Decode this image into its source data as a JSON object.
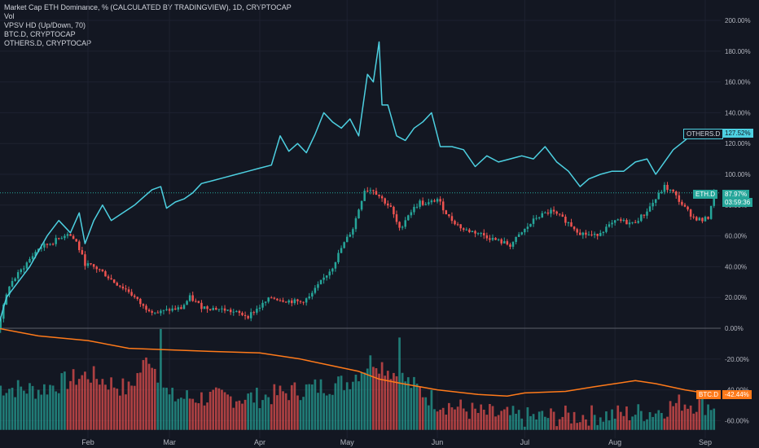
{
  "legend": {
    "line1": "Market Cap ETH Dominance, % (CALCULATED BY TRADINGVIEW), 1D, CRYPTOCAP",
    "line2": "Vol",
    "line3": "VPSV HD (Up/Down, 70)",
    "line4": "BTC.D, CRYPTOCAP",
    "line5": "OTHERS.D, CRYPTOCAP"
  },
  "badges": {
    "others_label": "OTHERS.D",
    "others_value": "127.52%",
    "eth_label": "ETH.D",
    "eth_value": "87.97%",
    "eth_countdown": "03:59:36",
    "btc_label": "BTC.D",
    "btc_value": "-42.44%"
  },
  "colors": {
    "background": "#131722",
    "up": "#26a69a",
    "down": "#ef5350",
    "others_line": "#4dd0e1",
    "btc_line": "#ff7a1a",
    "grid": "#1e2230",
    "zero_line": "#5d606b"
  },
  "chart_data": {
    "type": "line",
    "ylim": [
      -70,
      210
    ],
    "y_tick_labels": [
      "200.00%",
      "180.00%",
      "160.00%",
      "140.00%",
      "120.00%",
      "100.00%",
      "80.00%",
      "60.00%",
      "40.00%",
      "20.00%",
      "0.00%",
      "-20.00%",
      "-40.00%",
      "-60.00%"
    ],
    "y_tick_values": [
      200,
      180,
      160,
      140,
      120,
      100,
      80,
      60,
      40,
      20,
      0,
      -20,
      -40,
      -60
    ],
    "x_tick_labels": [
      "Feb",
      "Mar",
      "Apr",
      "May",
      "Jun",
      "Jul",
      "Aug",
      "Sep"
    ],
    "x_tick_dates": [
      "2021-02-01",
      "2021-03-01",
      "2021-04-01",
      "2021-05-01",
      "2021-06-01",
      "2021-07-01",
      "2021-08-01",
      "2021-09-01"
    ],
    "x_range": [
      "2021-01-01",
      "2021-09-01"
    ],
    "grid": true,
    "series": [
      {
        "name": "ETH.D",
        "style": "candlestick",
        "keypoints": [
          [
            "2021-01-01",
            0
          ],
          [
            "2021-01-05",
            28
          ],
          [
            "2021-01-10",
            40
          ],
          [
            "2021-01-15",
            52
          ],
          [
            "2021-01-20",
            56
          ],
          [
            "2021-01-25",
            62
          ],
          [
            "2021-01-28",
            56
          ],
          [
            "2021-01-31",
            42
          ],
          [
            "2021-02-05",
            38
          ],
          [
            "2021-02-10",
            30
          ],
          [
            "2021-02-15",
            24
          ],
          [
            "2021-02-20",
            14
          ],
          [
            "2021-02-25",
            10
          ],
          [
            "2021-03-01",
            12
          ],
          [
            "2021-03-05",
            13
          ],
          [
            "2021-03-08",
            20
          ],
          [
            "2021-03-12",
            14
          ],
          [
            "2021-03-20",
            12
          ],
          [
            "2021-03-28",
            8
          ],
          [
            "2021-04-01",
            14
          ],
          [
            "2021-04-05",
            20
          ],
          [
            "2021-04-10",
            18
          ],
          [
            "2021-04-15",
            17
          ],
          [
            "2021-04-18",
            20
          ],
          [
            "2021-04-22",
            30
          ],
          [
            "2021-04-26",
            40
          ],
          [
            "2021-04-29",
            52
          ],
          [
            "2021-05-03",
            65
          ],
          [
            "2021-05-07",
            90
          ],
          [
            "2021-05-10",
            90
          ],
          [
            "2021-05-13",
            84
          ],
          [
            "2021-05-16",
            78
          ],
          [
            "2021-05-19",
            64
          ],
          [
            "2021-05-22",
            74
          ],
          [
            "2021-05-26",
            82
          ],
          [
            "2021-05-28",
            80
          ],
          [
            "2021-06-01",
            84
          ],
          [
            "2021-06-05",
            72
          ],
          [
            "2021-06-10",
            64
          ],
          [
            "2021-06-15",
            62
          ],
          [
            "2021-06-20",
            58
          ],
          [
            "2021-06-26",
            54
          ],
          [
            "2021-07-01",
            64
          ],
          [
            "2021-07-05",
            72
          ],
          [
            "2021-07-10",
            76
          ],
          [
            "2021-07-15",
            70
          ],
          [
            "2021-07-20",
            62
          ],
          [
            "2021-07-25",
            60
          ],
          [
            "2021-07-28",
            64
          ],
          [
            "2021-08-02",
            70
          ],
          [
            "2021-08-07",
            68
          ],
          [
            "2021-08-11",
            74
          ],
          [
            "2021-08-15",
            84
          ],
          [
            "2021-08-18",
            92
          ],
          [
            "2021-08-21",
            88
          ],
          [
            "2021-08-25",
            78
          ],
          [
            "2021-08-28",
            72
          ],
          [
            "2021-08-31",
            70
          ],
          [
            "2021-09-02",
            72
          ],
          [
            "2021-09-04",
            88
          ]
        ]
      },
      {
        "name": "OTHERS.D",
        "keypoints": [
          [
            "2021-01-01",
            0
          ],
          [
            "2021-01-04",
            20
          ],
          [
            "2021-01-08",
            30
          ],
          [
            "2021-01-12",
            40
          ],
          [
            "2021-01-15",
            50
          ],
          [
            "2021-01-18",
            60
          ],
          [
            "2021-01-22",
            70
          ],
          [
            "2021-01-26",
            62
          ],
          [
            "2021-01-29",
            75
          ],
          [
            "2021-01-31",
            55
          ],
          [
            "2021-02-03",
            70
          ],
          [
            "2021-02-06",
            80
          ],
          [
            "2021-02-09",
            70
          ],
          [
            "2021-02-13",
            75
          ],
          [
            "2021-02-17",
            80
          ],
          [
            "2021-02-20",
            85
          ],
          [
            "2021-02-23",
            90
          ],
          [
            "2021-02-26",
            92
          ],
          [
            "2021-02-28",
            78
          ],
          [
            "2021-03-03",
            82
          ],
          [
            "2021-03-06",
            84
          ],
          [
            "2021-03-09",
            88
          ],
          [
            "2021-03-12",
            94
          ],
          [
            "2021-03-16",
            96
          ],
          [
            "2021-03-20",
            98
          ],
          [
            "2021-03-24",
            100
          ],
          [
            "2021-03-28",
            102
          ],
          [
            "2021-04-01",
            104
          ],
          [
            "2021-04-05",
            106
          ],
          [
            "2021-04-08",
            125
          ],
          [
            "2021-04-11",
            115
          ],
          [
            "2021-04-14",
            120
          ],
          [
            "2021-04-17",
            114
          ],
          [
            "2021-04-20",
            126
          ],
          [
            "2021-04-23",
            140
          ],
          [
            "2021-04-26",
            134
          ],
          [
            "2021-04-29",
            130
          ],
          [
            "2021-05-02",
            136
          ],
          [
            "2021-05-05",
            125
          ],
          [
            "2021-05-08",
            165
          ],
          [
            "2021-05-10",
            160
          ],
          [
            "2021-05-12",
            186
          ],
          [
            "2021-05-13",
            145
          ],
          [
            "2021-05-15",
            145
          ],
          [
            "2021-05-18",
            125
          ],
          [
            "2021-05-21",
            122
          ],
          [
            "2021-05-24",
            130
          ],
          [
            "2021-05-27",
            134
          ],
          [
            "2021-05-30",
            140
          ],
          [
            "2021-06-02",
            118
          ],
          [
            "2021-06-06",
            118
          ],
          [
            "2021-06-10",
            116
          ],
          [
            "2021-06-14",
            105
          ],
          [
            "2021-06-18",
            112
          ],
          [
            "2021-06-22",
            108
          ],
          [
            "2021-06-26",
            110
          ],
          [
            "2021-06-30",
            112
          ],
          [
            "2021-07-04",
            110
          ],
          [
            "2021-07-08",
            118
          ],
          [
            "2021-07-12",
            108
          ],
          [
            "2021-07-16",
            102
          ],
          [
            "2021-07-20",
            92
          ],
          [
            "2021-07-23",
            97
          ],
          [
            "2021-07-27",
            100
          ],
          [
            "2021-07-31",
            102
          ],
          [
            "2021-08-04",
            102
          ],
          [
            "2021-08-08",
            108
          ],
          [
            "2021-08-12",
            110
          ],
          [
            "2021-08-15",
            100
          ],
          [
            "2021-08-18",
            108
          ],
          [
            "2021-08-21",
            116
          ],
          [
            "2021-08-25",
            122
          ],
          [
            "2021-08-28",
            127
          ],
          [
            "2021-08-31",
            125
          ],
          [
            "2021-09-02",
            127.52
          ]
        ]
      },
      {
        "name": "BTC.D",
        "keypoints": [
          [
            "2021-01-01",
            0
          ],
          [
            "2021-01-15",
            -5
          ],
          [
            "2021-02-01",
            -8
          ],
          [
            "2021-02-15",
            -13
          ],
          [
            "2021-03-01",
            -14
          ],
          [
            "2021-03-15",
            -15
          ],
          [
            "2021-04-01",
            -16
          ],
          [
            "2021-04-15",
            -20
          ],
          [
            "2021-04-25",
            -24
          ],
          [
            "2021-05-05",
            -28
          ],
          [
            "2021-05-12",
            -33
          ],
          [
            "2021-05-20",
            -36
          ],
          [
            "2021-06-01",
            -40
          ],
          [
            "2021-06-15",
            -43
          ],
          [
            "2021-06-25",
            -44
          ],
          [
            "2021-07-01",
            -42
          ],
          [
            "2021-07-15",
            -41
          ],
          [
            "2021-07-25",
            -38
          ],
          [
            "2021-08-01",
            -36
          ],
          [
            "2021-08-08",
            -34
          ],
          [
            "2021-08-15",
            -36
          ],
          [
            "2021-08-25",
            -40
          ],
          [
            "2021-09-02",
            -42.44
          ]
        ]
      },
      {
        "name": "Vol",
        "style": "histogram",
        "baseline": -66,
        "keypoints": [
          [
            "2021-01-01",
            -38
          ],
          [
            "2021-01-15",
            -40
          ],
          [
            "2021-02-01",
            -30
          ],
          [
            "2021-02-15",
            -40
          ],
          [
            "2021-02-22",
            -18
          ],
          [
            "2021-03-01",
            -45
          ],
          [
            "2021-04-01",
            -45
          ],
          [
            "2021-04-15",
            -40
          ],
          [
            "2021-05-01",
            -35
          ],
          [
            "2021-05-10",
            -20
          ],
          [
            "2021-05-18",
            -30
          ],
          [
            "2021-06-01",
            -48
          ],
          [
            "2021-06-15",
            -55
          ],
          [
            "2021-07-01",
            -58
          ],
          [
            "2021-08-01",
            -56
          ],
          [
            "2021-08-15",
            -54
          ],
          [
            "2021-08-24",
            -48
          ],
          [
            "2021-09-02",
            -50
          ]
        ],
        "spikes": [
          [
            "2021-02-26",
            -0.5
          ],
          [
            "2021-05-19",
            -6
          ]
        ]
      }
    ],
    "reference_lines": [
      {
        "type": "dotted",
        "value": 87.97,
        "series": "ETH.D"
      },
      {
        "type": "solid",
        "value": 0
      }
    ]
  }
}
